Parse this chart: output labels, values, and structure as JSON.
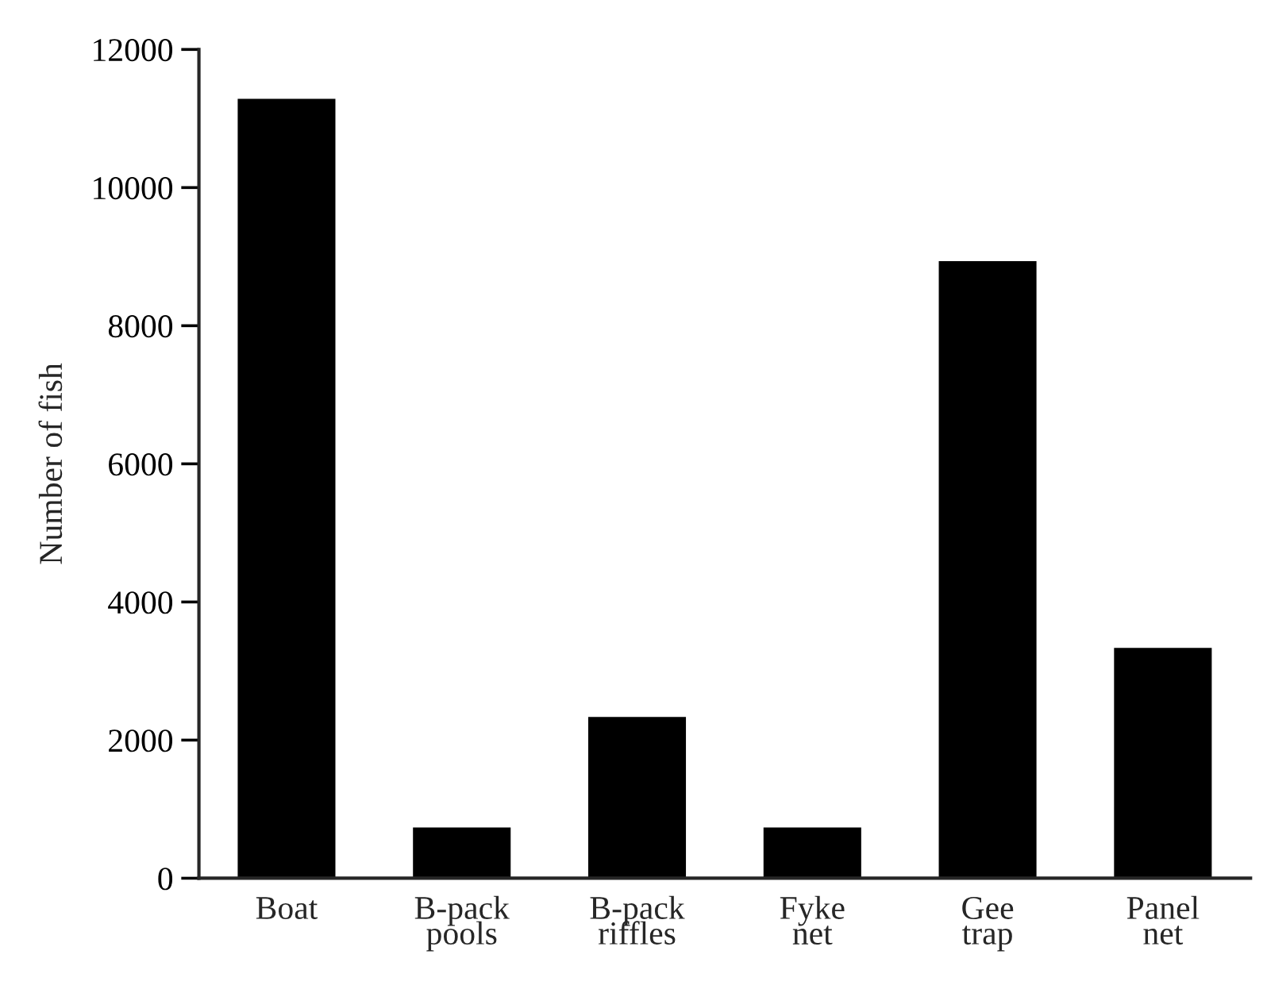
{
  "chart_data": {
    "type": "bar",
    "ylabel": "Number of fish",
    "categories": [
      "Boat",
      "B-pack\npools",
      "B-pack\nriffles",
      "Fyke\nnet",
      "Gee\ntrap",
      "Panel\nnet"
    ],
    "values": [
      11300,
      750,
      2350,
      750,
      8950,
      3350
    ],
    "color": "#000000",
    "ylim": [
      0,
      12000
    ],
    "yticks": [
      0,
      2000,
      4000,
      6000,
      8000,
      10000,
      12000
    ],
    "grid": false
  }
}
